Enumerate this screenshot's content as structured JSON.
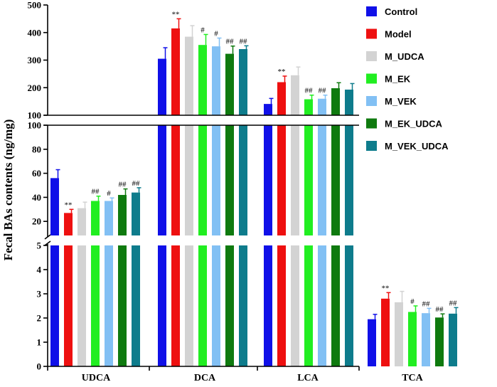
{
  "chart_data": {
    "type": "bar",
    "ylabel": "Fecal BAs contents (ng/mg)",
    "categories": [
      "UDCA",
      "DCA",
      "LCA",
      "TCA"
    ],
    "y_axis_segments": [
      {
        "range": [
          0,
          5
        ],
        "ticks": [
          "0",
          "1",
          "2",
          "3",
          "4",
          "5"
        ]
      },
      {
        "range": [
          0,
          100
        ],
        "ticks": [
          "20",
          "40",
          "60",
          "80",
          "100"
        ]
      },
      {
        "range": [
          100,
          500
        ],
        "ticks": [
          "100",
          "200",
          "300",
          "400",
          "500"
        ]
      }
    ],
    "legend_position": "right",
    "series": [
      {
        "name": "Control",
        "color": "#1010e8",
        "values": [
          56,
          305,
          141,
          1.95
        ],
        "errors": [
          7,
          40,
          20,
          0.2
        ],
        "annotations": [
          "",
          "",
          "",
          ""
        ]
      },
      {
        "name": "Model",
        "color": "#ee1010",
        "values": [
          27,
          415,
          220,
          2.8
        ],
        "errors": [
          3,
          35,
          22,
          0.25
        ],
        "annotations": [
          "**",
          "**",
          "**",
          "**"
        ]
      },
      {
        "name": "M_UDCA",
        "color": "#d3d3d3",
        "values": [
          31,
          385,
          245,
          2.65
        ],
        "errors": [
          5,
          40,
          30,
          0.45
        ],
        "annotations": [
          "",
          "",
          "",
          ""
        ]
      },
      {
        "name": "M_EK",
        "color": "#21ee21",
        "values": [
          37,
          355,
          158,
          2.25
        ],
        "errors": [
          4,
          38,
          15,
          0.25
        ],
        "annotations": [
          "##",
          "#",
          "##",
          "#"
        ]
      },
      {
        "name": "M_VEK",
        "color": "#82c0f4",
        "values": [
          37,
          350,
          160,
          2.2
        ],
        "errors": [
          2.5,
          30,
          13,
          0.2
        ],
        "annotations": [
          "#",
          "#",
          "##",
          "##"
        ]
      },
      {
        "name": "M_EK_UDCA",
        "color": "#0f7a0f",
        "values": [
          42,
          323,
          198,
          2.02
        ],
        "errors": [
          5,
          28,
          20,
          0.15
        ],
        "annotations": [
          "##",
          "##",
          "",
          "##"
        ]
      },
      {
        "name": "M_VEK_UDCA",
        "color": "#0e7c8c",
        "values": [
          44,
          340,
          193,
          2.18
        ],
        "errors": [
          4,
          12,
          22,
          0.25
        ],
        "annotations": [
          "##",
          "##",
          "",
          "##"
        ]
      }
    ]
  }
}
